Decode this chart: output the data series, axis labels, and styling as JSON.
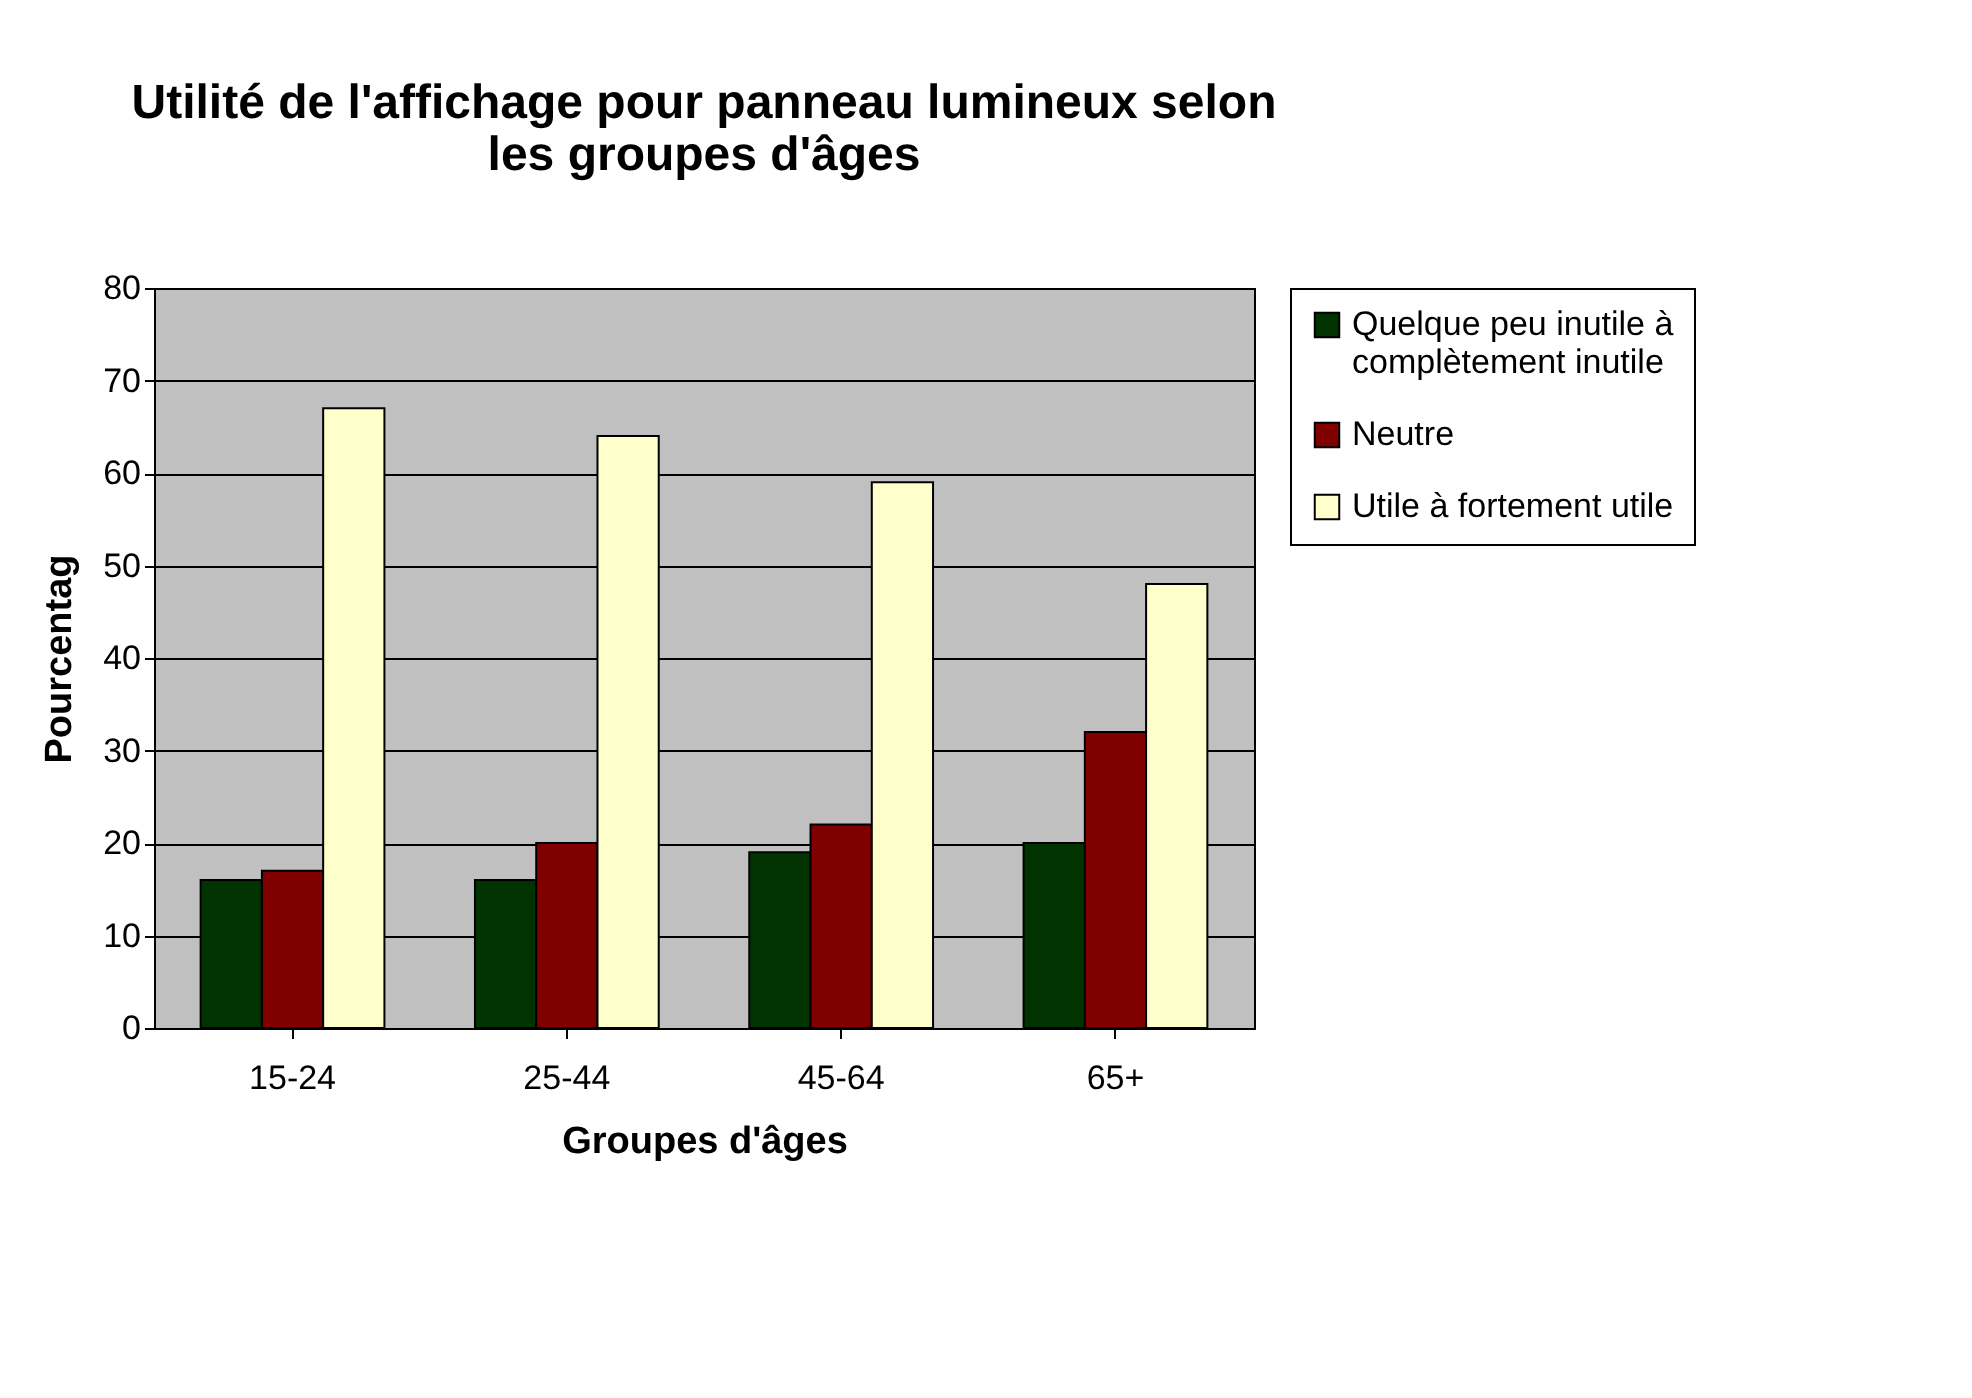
{
  "chart_data": {
    "type": "bar",
    "title": "Utilité de l'affichage pour panneau lumineux selon les groupes d'âges",
    "xlabel": "Groupes d'âges",
    "ylabel": "Pourcentag",
    "categories": [
      "15-24",
      "25-44",
      "45-64",
      "65+"
    ],
    "series": [
      {
        "name": "Quelque peu inutile à complètement inutile",
        "color": "#003300",
        "values": [
          16,
          16,
          19,
          20
        ]
      },
      {
        "name": "Neutre",
        "color": "#800000",
        "values": [
          17,
          20,
          22,
          32
        ]
      },
      {
        "name": "Utile à fortement utile",
        "color": "#ffffcc",
        "values": [
          67,
          64,
          59,
          48
        ]
      }
    ],
    "ylim": [
      0,
      80
    ],
    "yticks": [
      0,
      10,
      20,
      30,
      40,
      50,
      60,
      70,
      80
    ],
    "grid": "y",
    "legend": "right"
  }
}
